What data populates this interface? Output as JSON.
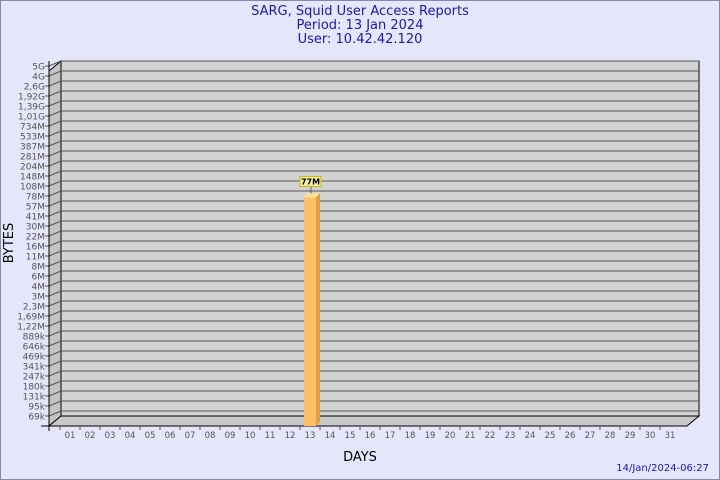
{
  "chart_data": {
    "type": "bar",
    "title": "SARG, Squid User Access Reports",
    "subtitle": [
      "Period: 13 Jan 2024",
      "User: 10.42.42.120"
    ],
    "xlabel": "DAYS",
    "ylabel": "BYTES",
    "y_scale": "log",
    "grid": true,
    "y_ticks": [
      "5G",
      "4G",
      "2,6G",
      "1,92G",
      "1,39G",
      "1,01G",
      "734M",
      "533M",
      "387M",
      "281M",
      "204M",
      "148M",
      "108M",
      "78M",
      "57M",
      "41M",
      "30M",
      "22M",
      "16M",
      "11M",
      "8M",
      "6M",
      "4M",
      "3M",
      "2,3M",
      "1,69M",
      "1,22M",
      "889k",
      "646k",
      "469k",
      "341k",
      "247k",
      "180k",
      "131k",
      "95k",
      "69k"
    ],
    "categories": [
      "01",
      "02",
      "03",
      "04",
      "05",
      "06",
      "07",
      "08",
      "09",
      "10",
      "11",
      "12",
      "13",
      "14",
      "15",
      "16",
      "17",
      "18",
      "19",
      "20",
      "21",
      "22",
      "23",
      "24",
      "25",
      "26",
      "27",
      "28",
      "29",
      "30",
      "31"
    ],
    "bars": [
      {
        "category": "13",
        "value": 77000000,
        "label": "77M"
      }
    ],
    "colors": {
      "bar": "#fec066",
      "bar_side": "#e0a048",
      "bar_top": "#ffe090",
      "plot": "#d3d3d3",
      "title": "#1a1aa6"
    }
  },
  "footer": {
    "timestamp": "14/Jan/2024-06:27"
  }
}
